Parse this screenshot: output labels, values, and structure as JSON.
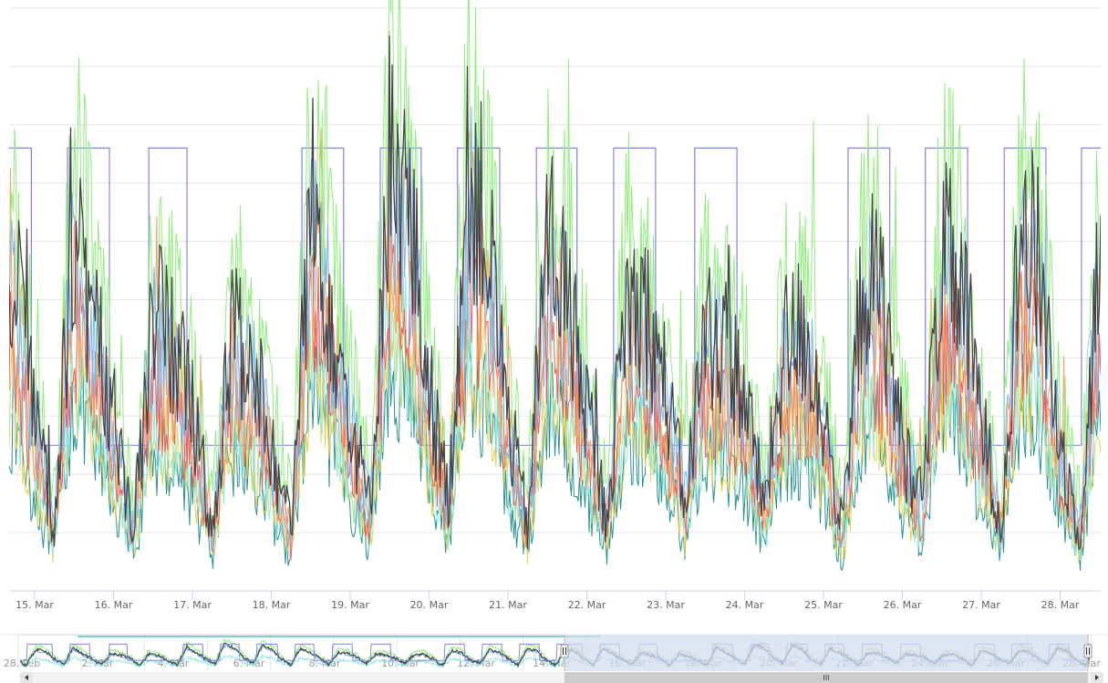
{
  "chart_data": {
    "type": "line",
    "title": "",
    "xlabel": "",
    "ylabel": "",
    "grid": true,
    "legend": "none",
    "y_gridlines": 10,
    "ylim": [
      0,
      10
    ],
    "x_ticks": [
      "15. Mar",
      "16. Mar",
      "17. Mar",
      "18. Mar",
      "19. Mar",
      "20. Mar",
      "21. Mar",
      "22. Mar",
      "23. Mar",
      "24. Mar",
      "25. Mar",
      "26. Mar",
      "27. Mar",
      "28. Mar"
    ],
    "x_range": [
      "14. Mar 20:50",
      "28. Mar 13:30"
    ],
    "sample_start": "14. Mar 18:00",
    "sample_interval_hours": 6,
    "step_series": {
      "color": "#8085e9",
      "high": 7.6,
      "low": 2.5,
      "high_periods": [
        {
          "day": 14,
          "from": "00:00",
          "to": "23:00"
        },
        {
          "day": 15,
          "from": "10:00",
          "to": "22:45"
        },
        {
          "day": 16,
          "from": "10:45",
          "to": "22:20"
        },
        {
          "day": 18,
          "from": "09:20",
          "to": "22:00"
        },
        {
          "day": 19,
          "from": "09:10",
          "to": "21:35"
        },
        {
          "day": 20,
          "from": "08:40",
          "to": "21:30"
        },
        {
          "day": 21,
          "from": "08:40",
          "to": "21:00"
        },
        {
          "day": 22,
          "from": "08:10",
          "to": "20:55"
        },
        {
          "day": 23,
          "from": "08:50",
          "to": "21:40"
        },
        {
          "day": 25,
          "from": "07:30",
          "to": "20:10"
        },
        {
          "day": 26,
          "from": "07:00",
          "to": "19:50"
        },
        {
          "day": 27,
          "from": "07:00",
          "to": "19:40"
        },
        {
          "day": 28,
          "from": "06:30",
          "to": "23:59"
        }
      ]
    },
    "series": [
      {
        "color": "#2b908f",
        "values": [
          2.9,
          1.6,
          0.7,
          3.4,
          2.4,
          1.6,
          0.6,
          2.5,
          2.2,
          1.7,
          0.6,
          2.4,
          2.1,
          1.4,
          0.6,
          3.5,
          2.6,
          1.6,
          0.8,
          3.9,
          3.4,
          1.9,
          0.9,
          3.8,
          3.1,
          1.6,
          0.7,
          3.3,
          2.6,
          1.7,
          0.7,
          2.6,
          2.5,
          1.9,
          0.9,
          2.4,
          2.2,
          1.8,
          0.8,
          2.2,
          2.4,
          1.6,
          0.6,
          2.9,
          2.6,
          1.4,
          0.9,
          3.0,
          2.7,
          1.6,
          0.7,
          3.3,
          2.9,
          1.4,
          0.6,
          3.0
        ]
      },
      {
        "color": "#e4d354",
        "values": [
          3.2,
          1.9,
          0.8,
          3.8,
          2.7,
          1.9,
          0.8,
          2.8,
          2.5,
          2.0,
          0.8,
          2.7,
          2.4,
          1.6,
          0.8,
          3.9,
          3.0,
          1.9,
          1.0,
          4.4,
          3.8,
          2.1,
          1.0,
          4.2,
          3.5,
          1.9,
          0.8,
          3.7,
          3.0,
          2.0,
          0.9,
          3.0,
          2.8,
          2.1,
          1.0,
          2.7,
          2.5,
          2.1,
          1.0,
          2.5,
          2.7,
          1.9,
          0.7,
          3.2,
          3.0,
          1.6,
          1.0,
          3.4,
          3.1,
          1.9,
          0.8,
          3.7,
          3.2,
          1.6,
          0.8,
          3.4
        ]
      },
      {
        "color": "#91e8e1",
        "values": [
          3.5,
          2.0,
          0.9,
          4.1,
          2.9,
          2.0,
          0.8,
          3.1,
          2.7,
          2.1,
          0.8,
          2.9,
          2.6,
          1.7,
          0.8,
          4.3,
          3.2,
          2.0,
          1.0,
          4.8,
          4.1,
          2.3,
          1.1,
          4.6,
          3.8,
          2.0,
          0.9,
          4.0,
          3.2,
          2.1,
          0.9,
          3.2,
          3.1,
          2.3,
          1.1,
          2.9,
          2.7,
          2.2,
          1.0,
          2.7,
          2.9,
          2.0,
          0.7,
          3.5,
          3.2,
          1.7,
          1.1,
          3.7,
          3.3,
          2.0,
          0.9,
          4.0,
          3.5,
          1.7,
          0.8,
          3.7
        ]
      },
      {
        "color": "#f45b5b",
        "values": [
          4.1,
          2.3,
          1.0,
          4.8,
          3.4,
          2.3,
          0.9,
          3.6,
          3.1,
          2.4,
          0.9,
          3.4,
          3.0,
          2.0,
          0.9,
          5.0,
          3.7,
          2.3,
          1.2,
          5.5,
          4.8,
          2.6,
          1.3,
          5.3,
          4.4,
          2.3,
          1.0,
          4.6,
          3.7,
          2.4,
          1.0,
          3.7,
          3.6,
          2.6,
          1.3,
          3.4,
          3.1,
          2.6,
          1.2,
          3.1,
          3.4,
          2.3,
          0.8,
          4.1,
          3.7,
          2.0,
          1.3,
          4.3,
          3.8,
          2.3,
          1.0,
          4.6,
          4.1,
          2.0,
          0.9,
          4.3
        ]
      },
      {
        "color": "#f7a35c",
        "values": [
          4.8,
          2.7,
          1.0,
          5.6,
          3.9,
          2.7,
          0.9,
          4.2,
          3.7,
          2.8,
          0.9,
          3.9,
          3.5,
          2.2,
          0.9,
          5.9,
          4.4,
          2.7,
          1.3,
          6.6,
          5.6,
          3.1,
          1.4,
          6.3,
          5.2,
          2.7,
          1.0,
          5.5,
          4.4,
          2.8,
          1.1,
          4.4,
          4.2,
          3.1,
          1.4,
          3.9,
          3.7,
          3.0,
          1.3,
          3.7,
          3.9,
          2.7,
          0.9,
          4.8,
          4.4,
          2.2,
          1.4,
          5.0,
          4.5,
          2.7,
          1.0,
          5.5,
          4.8,
          2.2,
          0.9,
          5.0
        ]
      },
      {
        "color": "#90ed7d",
        "values": [
          6.6,
          3.8,
          1.6,
          7.8,
          5.5,
          3.8,
          1.5,
          5.8,
          5.1,
          4.0,
          1.5,
          5.5,
          4.9,
          3.2,
          1.5,
          8.1,
          6.1,
          3.8,
          1.9,
          9.0,
          7.8,
          4.3,
          2.0,
          8.7,
          7.2,
          3.8,
          1.6,
          7.5,
          6.1,
          4.0,
          1.7,
          6.1,
          5.8,
          4.3,
          2.0,
          5.5,
          5.1,
          4.2,
          1.9,
          5.1,
          5.5,
          3.8,
          1.3,
          6.6,
          6.1,
          3.2,
          2.0,
          7.0,
          6.3,
          3.8,
          1.6,
          7.5,
          6.6,
          3.2,
          1.5,
          7.0
        ]
      },
      {
        "color": "#7cb5ec",
        "values": [
          5.1,
          2.8,
          1.1,
          6.0,
          4.2,
          2.8,
          1.0,
          4.4,
          3.9,
          3.0,
          1.0,
          4.2,
          3.7,
          2.4,
          1.0,
          6.2,
          4.6,
          2.8,
          1.4,
          7.0,
          6.0,
          3.3,
          1.5,
          6.7,
          5.5,
          2.8,
          1.1,
          5.8,
          4.6,
          3.0,
          1.2,
          4.6,
          4.4,
          3.3,
          1.5,
          4.2,
          3.9,
          3.2,
          1.4,
          3.9,
          4.2,
          2.8,
          0.9,
          5.1,
          4.6,
          2.4,
          1.5,
          5.3,
          4.8,
          2.8,
          1.1,
          5.8,
          5.1,
          2.4,
          1.0,
          5.3
        ]
      },
      {
        "color": "#434348",
        "values": [
          5.5,
          3.0,
          1.1,
          6.5,
          4.5,
          3.0,
          1.0,
          4.8,
          4.2,
          3.2,
          1.0,
          4.5,
          4.0,
          2.5,
          1.0,
          6.8,
          5.0,
          3.0,
          1.4,
          7.6,
          6.5,
          3.5,
          1.5,
          7.3,
          6.0,
          3.0,
          1.1,
          6.3,
          5.0,
          3.2,
          1.2,
          5.0,
          4.8,
          3.5,
          1.5,
          4.5,
          4.2,
          3.4,
          1.4,
          4.2,
          4.5,
          3.0,
          0.9,
          5.5,
          5.0,
          2.5,
          1.5,
          5.8,
          5.2,
          3.0,
          1.1,
          6.3,
          5.5,
          2.5,
          1.0,
          5.8
        ]
      }
    ]
  },
  "navigator": {
    "labels": [
      "28. Feb",
      "2. Mar",
      "4. Mar",
      "6. Mar",
      "8. Mar",
      "10. Mar",
      "12. Mar",
      "14. Mar",
      "16. Mar",
      "18. Mar",
      "20. Mar",
      "22. Mar",
      "24. Mar",
      "26. Mar",
      "28. Mar"
    ],
    "selected_range": [
      "14. Mar 20:50",
      "28. Mar 13:30"
    ],
    "mask_color": "#d5dcee",
    "scrollbar_grip": "III",
    "handle_grip": "II"
  }
}
